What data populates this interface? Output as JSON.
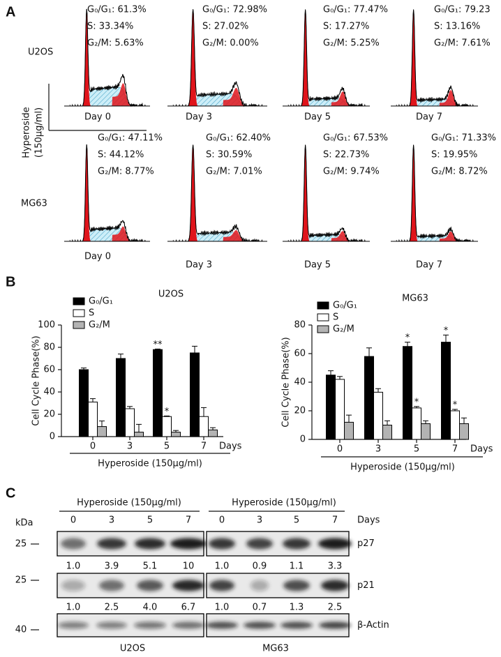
{
  "panel_labels": [
    "A",
    "B",
    "C"
  ],
  "flow": {
    "treatment": [
      "Hyperoside",
      "(150μg/ml)"
    ],
    "rows": [
      {
        "cell_line": "U2OS",
        "samples": [
          {
            "day": "Day 0",
            "g0g1": "G₀/G₁: 61.3%",
            "s": "S: 33.34%",
            "g2m": "G₂/M: 5.63%"
          },
          {
            "day": "Day 3",
            "g0g1": "G₀/G₁: 72.98%",
            "s": "S: 27.02%",
            "g2m": "G₂/M: 0.00%"
          },
          {
            "day": "Day 5",
            "g0g1": "G₀/G₁: 77.47%",
            "s": "S: 17.27%",
            "g2m": "G₂/M: 5.25%"
          },
          {
            "day": "Day 7",
            "g0g1": "G₀/G₁: 79.23",
            "s": "S: 13.16%",
            "g2m": "G₂/M: 7.61%"
          }
        ]
      },
      {
        "cell_line": "MG63",
        "samples": [
          {
            "day": "Day 0",
            "g0g1": "G₀/G₁: 47.11%",
            "s": "S: 44.12%",
            "g2m": "G₂/M: 8.77%"
          },
          {
            "day": "Day 3",
            "g0g1": "G₀/G₁: 62.40%",
            "s": "S: 30.59%",
            "g2m": "G₂/M: 7.01%"
          },
          {
            "day": "Day 5",
            "g0g1": "G₀/G₁: 67.53%",
            "s": "S: 22.73%",
            "g2m": "G₂/M: 9.74%"
          },
          {
            "day": "Day 7",
            "g0g1": "G₀/G₁: 71.33%",
            "s": "S: 19.95%",
            "g2m": "G₂/M: 8.72%"
          }
        ]
      }
    ]
  },
  "chart_data": [
    {
      "type": "bar",
      "title": "U2OS",
      "y_label": "Cell Cycle Phase(%)",
      "x_label": "Hyperoside (150μg/ml)",
      "x_unit": "Days",
      "categories": [
        "0",
        "3",
        "5",
        "7"
      ],
      "ylim": [
        0,
        100
      ],
      "yticks": [
        0,
        20,
        40,
        60,
        80,
        100
      ],
      "legend": "upper left",
      "series": [
        {
          "name": "G₀/G₁",
          "color": "#000000",
          "values": [
            60,
            70,
            78,
            75
          ],
          "errors": [
            1.5,
            4,
            0.5,
            6
          ],
          "significance": [
            null,
            null,
            "**",
            null
          ]
        },
        {
          "name": "S",
          "color": "#ffffff",
          "values": [
            31,
            25,
            18,
            18
          ],
          "errors": [
            3,
            2,
            0.5,
            8
          ],
          "significance": [
            null,
            null,
            "*",
            null
          ]
        },
        {
          "name": "G₂/M",
          "color": "#b3b3b3",
          "values": [
            9,
            4,
            4,
            6
          ],
          "errors": [
            5,
            7,
            1.5,
            2
          ],
          "significance": [
            null,
            null,
            null,
            null
          ]
        }
      ]
    },
    {
      "type": "bar",
      "title": "MG63",
      "y_label": "Cell Cycle Phase(%)",
      "x_label": "Hyperoside (150μg/ml)",
      "x_unit": "Days",
      "categories": [
        "0",
        "3",
        "5",
        "7"
      ],
      "ylim": [
        0,
        80
      ],
      "yticks": [
        0,
        20,
        40,
        60,
        80
      ],
      "legend": "upper left",
      "series": [
        {
          "name": "G₀/G₁",
          "color": "#000000",
          "values": [
            45,
            58,
            65,
            68
          ],
          "errors": [
            3,
            6,
            3,
            5
          ],
          "significance": [
            null,
            null,
            "*",
            "*"
          ]
        },
        {
          "name": "S",
          "color": "#ffffff",
          "values": [
            42,
            33,
            22,
            20
          ],
          "errors": [
            2,
            2.5,
            1,
            1
          ],
          "significance": [
            null,
            null,
            "*",
            "*"
          ]
        },
        {
          "name": "G₂/M",
          "color": "#b3b3b3",
          "values": [
            12,
            10,
            11,
            11
          ],
          "errors": [
            5,
            3,
            2,
            4
          ],
          "significance": [
            null,
            null,
            null,
            null
          ]
        }
      ]
    }
  ],
  "blot": {
    "treatment": "Hyperoside (150μg/ml)",
    "days": [
      "0",
      "3",
      "5",
      "7"
    ],
    "days_label": "Days",
    "kda_label": "kDa",
    "cell_lines": [
      "U2OS",
      "MG63"
    ],
    "rows": [
      {
        "protein": "p27",
        "kda": "25",
        "quant": [
          [
            "1.0",
            "3.9",
            "5.1",
            "10"
          ],
          [
            "1.0",
            "0.9",
            "1.1",
            "3.3"
          ]
        ]
      },
      {
        "protein": "p21",
        "kda": "25",
        "quant": [
          [
            "1.0",
            "2.5",
            "4.0",
            "6.7"
          ],
          [
            "1.0",
            "0.7",
            "1.3",
            "2.5"
          ]
        ]
      },
      {
        "protein": "β-Actin",
        "kda": "40"
      }
    ]
  }
}
